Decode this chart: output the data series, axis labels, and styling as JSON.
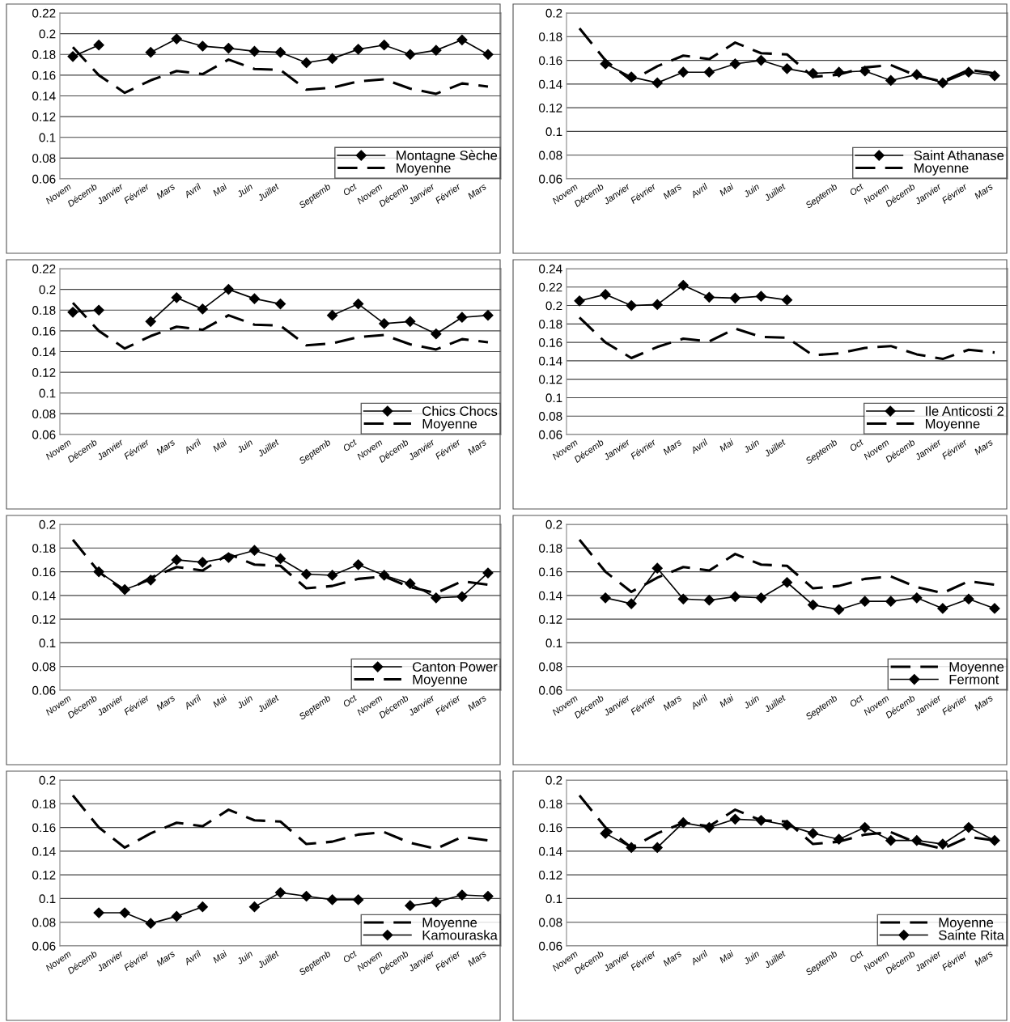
{
  "chart_data": [
    {
      "type": "line",
      "categories": [
        "Novem",
        "Décemb",
        "Janvier",
        "Février",
        "Mars",
        "Avril",
        "Mai",
        "Juin",
        "Juillet",
        null,
        "Septemb",
        "Oct",
        "Novem",
        "Décemb",
        "Janvier",
        "Février",
        "Mars"
      ],
      "ylim": [
        0.06,
        0.22
      ],
      "yticks": [
        0.06,
        0.08,
        0.1,
        0.12,
        0.14,
        0.16,
        0.18,
        0.2,
        0.22
      ],
      "grid": "y",
      "legend": "bottom right",
      "series": [
        {
          "name": "Montagne Sèche",
          "color": "#000000",
          "marker": "diamond",
          "line_style": "solid",
          "values": [
            0.178,
            0.189,
            null,
            0.182,
            0.195,
            0.188,
            0.186,
            0.183,
            0.182,
            0.172,
            0.176,
            0.185,
            0.189,
            0.18,
            0.184,
            0.194,
            0.18
          ]
        },
        {
          "name": "Moyenne",
          "color": "#000000",
          "marker": "none",
          "line_style": "dashed",
          "values": [
            0.187,
            0.16,
            0.143,
            0.155,
            0.164,
            0.161,
            0.175,
            0.166,
            0.165,
            0.146,
            0.148,
            0.154,
            0.156,
            0.147,
            0.142,
            0.152,
            0.149
          ]
        }
      ]
    },
    {
      "type": "line",
      "categories": [
        "Novem",
        "Décemb",
        "Janvier",
        "Février",
        "Mars",
        "Avril",
        "Mai",
        "Juin",
        "Juillet",
        null,
        "Septemb",
        "Oct",
        "Novem",
        "Décemb",
        "Janvier",
        "Février",
        "Mars"
      ],
      "ylim": [
        0.06,
        0.2
      ],
      "yticks": [
        0.06,
        0.08,
        0.1,
        0.12,
        0.14,
        0.16,
        0.18,
        0.2
      ],
      "grid": "y",
      "legend": "bottom right",
      "series": [
        {
          "name": "Saint Athanase",
          "color": "#000000",
          "marker": "diamond",
          "line_style": "solid",
          "values": [
            null,
            0.157,
            0.146,
            0.141,
            0.15,
            0.15,
            0.157,
            0.16,
            0.153,
            0.149,
            0.15,
            0.151,
            0.143,
            0.148,
            0.141,
            0.15,
            0.147
          ]
        },
        {
          "name": "Moyenne",
          "color": "#000000",
          "marker": "none",
          "line_style": "dashed",
          "values": [
            0.187,
            0.16,
            0.143,
            0.155,
            0.164,
            0.161,
            0.175,
            0.166,
            0.165,
            0.146,
            0.148,
            0.154,
            0.156,
            0.147,
            0.142,
            0.152,
            0.149
          ]
        }
      ]
    },
    {
      "type": "line",
      "categories": [
        "Novem",
        "Décemb",
        "Janvier",
        "Février",
        "Mars",
        "Avril",
        "Mai",
        "Juin",
        "Juillet",
        null,
        "Septemb",
        "Oct",
        "Novem",
        "Décemb",
        "Janvier",
        "Février",
        "Mars"
      ],
      "ylim": [
        0.06,
        0.22
      ],
      "yticks": [
        0.06,
        0.08,
        0.1,
        0.12,
        0.14,
        0.16,
        0.18,
        0.2,
        0.22
      ],
      "grid": "y",
      "legend": "bottom right",
      "series": [
        {
          "name": "Chics Chocs",
          "color": "#000000",
          "marker": "diamond",
          "line_style": "solid",
          "values": [
            0.178,
            0.18,
            null,
            0.169,
            0.192,
            0.181,
            0.2,
            0.191,
            0.186,
            null,
            0.175,
            0.186,
            0.167,
            0.169,
            0.157,
            0.173,
            0.175
          ]
        },
        {
          "name": "Moyenne",
          "color": "#000000",
          "marker": "none",
          "line_style": "dashed",
          "values": [
            0.187,
            0.16,
            0.143,
            0.155,
            0.164,
            0.161,
            0.175,
            0.166,
            0.165,
            0.146,
            0.148,
            0.154,
            0.156,
            0.147,
            0.142,
            0.152,
            0.149
          ]
        }
      ]
    },
    {
      "type": "line",
      "categories": [
        "Novem",
        "Décemb",
        "Janvier",
        "Février",
        "Mars",
        "Avril",
        "Mai",
        "Juin",
        "Juillet",
        null,
        "Septemb",
        "Oct",
        "Novem",
        "Décemb",
        "Janvier",
        "Février",
        "Mars"
      ],
      "ylim": [
        0.06,
        0.24
      ],
      "yticks": [
        0.06,
        0.08,
        0.1,
        0.12,
        0.14,
        0.16,
        0.18,
        0.2,
        0.22,
        0.24
      ],
      "grid": "y",
      "legend": "bottom right",
      "series": [
        {
          "name": "Ile Anticosti 2",
          "color": "#000000",
          "marker": "diamond",
          "line_style": "solid",
          "values": [
            0.205,
            0.212,
            0.2,
            0.201,
            0.222,
            0.209,
            0.208,
            0.21,
            0.206,
            null,
            null,
            null,
            null,
            null,
            null,
            null,
            null
          ]
        },
        {
          "name": "Moyenne",
          "color": "#000000",
          "marker": "none",
          "line_style": "dashed",
          "values": [
            0.187,
            0.16,
            0.143,
            0.155,
            0.164,
            0.161,
            0.175,
            0.166,
            0.165,
            0.146,
            0.148,
            0.154,
            0.156,
            0.147,
            0.142,
            0.152,
            0.149
          ]
        }
      ]
    },
    {
      "type": "line",
      "categories": [
        "Novem",
        "Décemb",
        "Janvier",
        "Février",
        "Mars",
        "Avril",
        "Mai",
        "Juin",
        "Juillet",
        null,
        "Septemb",
        "Oct",
        "Novem",
        "Décemb",
        "Janvier",
        "Février",
        "Mars"
      ],
      "ylim": [
        0.06,
        0.2
      ],
      "yticks": [
        0.06,
        0.08,
        0.1,
        0.12,
        0.14,
        0.16,
        0.18,
        0.2
      ],
      "grid": "y",
      "legend": "bottom right",
      "series": [
        {
          "name": "Canton Power",
          "color": "#000000",
          "marker": "diamond",
          "line_style": "solid",
          "values": [
            null,
            0.16,
            0.145,
            0.153,
            0.17,
            0.168,
            0.172,
            0.178,
            0.171,
            0.158,
            0.157,
            0.166,
            0.157,
            0.15,
            0.138,
            0.139,
            0.159
          ]
        },
        {
          "name": "Moyenne",
          "color": "#000000",
          "marker": "none",
          "line_style": "dashed",
          "values": [
            0.187,
            0.16,
            0.143,
            0.155,
            0.164,
            0.161,
            0.175,
            0.166,
            0.165,
            0.146,
            0.148,
            0.154,
            0.156,
            0.147,
            0.142,
            0.152,
            0.149
          ]
        }
      ]
    },
    {
      "type": "line",
      "categories": [
        "Novem",
        "Décemb",
        "Janvier",
        "Février",
        "Mars",
        "Avril",
        "Mai",
        "Juin",
        "Juillet",
        null,
        "Septemb",
        "Oct",
        "Novem",
        "Décemb",
        "Janvier",
        "Février",
        "Mars"
      ],
      "ylim": [
        0.06,
        0.2
      ],
      "yticks": [
        0.06,
        0.08,
        0.1,
        0.12,
        0.14,
        0.16,
        0.18,
        0.2
      ],
      "grid": "y",
      "legend": "bottom right",
      "series": [
        {
          "name": "Moyenne",
          "color": "#000000",
          "marker": "none",
          "line_style": "dashed",
          "values": [
            0.187,
            0.16,
            0.143,
            0.155,
            0.164,
            0.161,
            0.175,
            0.166,
            0.165,
            0.146,
            0.148,
            0.154,
            0.156,
            0.147,
            0.142,
            0.152,
            0.149
          ]
        },
        {
          "name": "Fermont",
          "color": "#000000",
          "marker": "diamond",
          "line_style": "solid",
          "values": [
            null,
            0.138,
            0.133,
            0.163,
            0.137,
            0.136,
            0.139,
            0.138,
            0.151,
            0.132,
            0.128,
            0.135,
            0.135,
            0.138,
            0.129,
            0.137,
            0.129
          ]
        }
      ]
    },
    {
      "type": "line",
      "categories": [
        "Novem",
        "Décemb",
        "Janvier",
        "Février",
        "Mars",
        "Avril",
        "Mai",
        "Juin",
        "Juillet",
        null,
        "Septemb",
        "Oct",
        "Novem",
        "Décemb",
        "Janvier",
        "Février",
        "Mars"
      ],
      "ylim": [
        0.06,
        0.2
      ],
      "yticks": [
        0.06,
        0.08,
        0.1,
        0.12,
        0.14,
        0.16,
        0.18,
        0.2
      ],
      "grid": "y",
      "legend": "bottom right",
      "series": [
        {
          "name": "Moyenne",
          "color": "#000000",
          "marker": "none",
          "line_style": "dashed",
          "values": [
            0.187,
            0.16,
            0.143,
            0.155,
            0.164,
            0.161,
            0.175,
            0.166,
            0.165,
            0.146,
            0.148,
            0.154,
            0.156,
            0.147,
            0.142,
            0.152,
            0.149
          ]
        },
        {
          "name": "Kamouraska",
          "color": "#000000",
          "marker": "diamond",
          "line_style": "solid",
          "values": [
            null,
            0.088,
            0.088,
            0.079,
            0.085,
            0.093,
            null,
            0.093,
            0.105,
            0.102,
            0.099,
            0.099,
            null,
            0.094,
            0.097,
            0.103,
            0.102
          ]
        }
      ]
    },
    {
      "type": "line",
      "categories": [
        "Novem",
        "Décemb",
        "Janvier",
        "Février",
        "Mars",
        "Avril",
        "Mai",
        "Juin",
        "Juillet",
        null,
        "Septemb",
        "Oct",
        "Novem",
        "Décemb",
        "Janvier",
        "Février",
        "Mars"
      ],
      "ylim": [
        0.06,
        0.2
      ],
      "yticks": [
        0.06,
        0.08,
        0.1,
        0.12,
        0.14,
        0.16,
        0.18,
        0.2
      ],
      "grid": "y",
      "legend": "bottom right",
      "series": [
        {
          "name": "Moyenne",
          "color": "#000000",
          "marker": "none",
          "line_style": "dashed",
          "values": [
            0.187,
            0.16,
            0.143,
            0.155,
            0.164,
            0.161,
            0.175,
            0.166,
            0.165,
            0.146,
            0.148,
            0.154,
            0.156,
            0.147,
            0.142,
            0.152,
            0.149
          ]
        },
        {
          "name": "Sainte Rita",
          "color": "#000000",
          "marker": "diamond",
          "line_style": "solid",
          "values": [
            null,
            0.155,
            0.143,
            0.143,
            0.164,
            0.16,
            0.167,
            0.166,
            0.162,
            0.155,
            0.15,
            0.16,
            0.149,
            0.149,
            0.146,
            0.16,
            0.149
          ]
        }
      ]
    }
  ]
}
